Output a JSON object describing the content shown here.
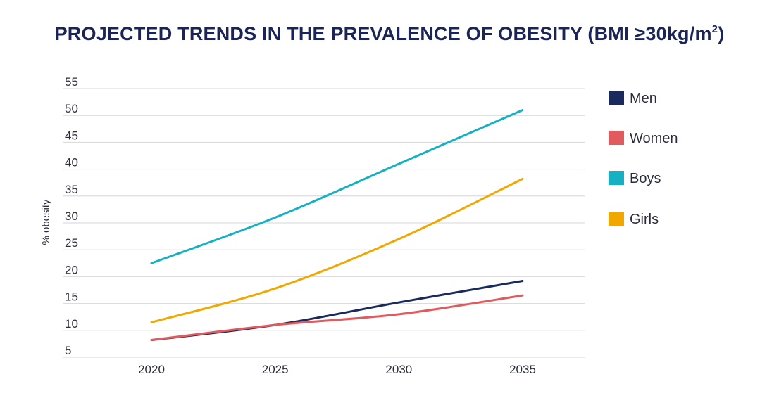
{
  "chart_data": {
    "type": "line",
    "title_main": "PROJECTED TRENDS IN THE PREVALENCE OF OBESITY (BMI ≥30kg/m",
    "title_sup": "2",
    "title_end": ")",
    "ylabel": "% obesity",
    "xlabel": "",
    "x": [
      2020,
      2025,
      2030,
      2035
    ],
    "x_ticks": [
      "2020",
      "2025",
      "2030",
      "2035"
    ],
    "y_ticks": [
      5,
      10,
      15,
      20,
      25,
      30,
      35,
      40,
      45,
      50,
      55
    ],
    "ylim": [
      5,
      55
    ],
    "grid": true,
    "legend_position": "right",
    "series": [
      {
        "name": "Men",
        "color": "#1b2a5c",
        "values": [
          8.2,
          11.0,
          15.2,
          19.2
        ]
      },
      {
        "name": "Women",
        "color": "#e05a5e",
        "values": [
          8.2,
          11.0,
          13.0,
          16.5
        ]
      },
      {
        "name": "Boys",
        "color": "#16b0c3",
        "values": [
          22.5,
          31.0,
          41.0,
          51.0
        ]
      },
      {
        "name": "Girls",
        "color": "#f0a800",
        "values": [
          11.5,
          17.8,
          27.0,
          38.2
        ]
      }
    ]
  }
}
